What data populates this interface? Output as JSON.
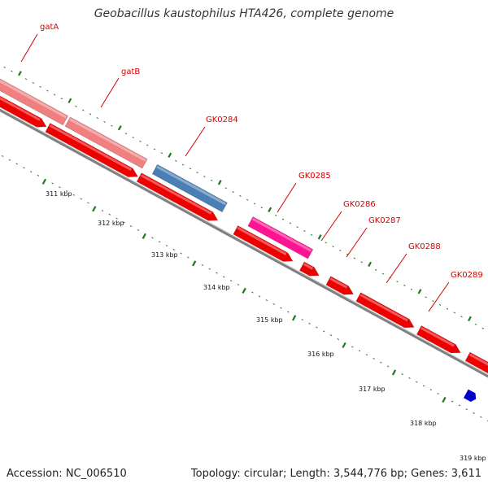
{
  "title": "Geobacillus kaustophilus HTA426, complete genome",
  "footer": {
    "accession": "Accession: NC_006510",
    "summary": "Topology: circular; Length: 3,544,776 bp; Genes: 3,611"
  },
  "colors": {
    "cds": "#ee0000",
    "rrna": "#f08080",
    "trna": "#4a7fb5",
    "misc": "#ff1493",
    "other": "#00e090",
    "repeat": "#0000cc",
    "backbone": "#909090",
    "tick": "#1a7a1a",
    "label": "#d40000"
  },
  "gene_labels": [
    "gatA",
    "gatB",
    "GK0284",
    "GK0285",
    "GK0286",
    "GK0287",
    "GK0288",
    "GK0289"
  ],
  "tick_labels": [
    "311 kbp",
    "312 kbp",
    "313 kbp",
    "314 kbp",
    "315 kbp",
    "316 kbp",
    "317 kbp",
    "318 kbp",
    "319 kbp"
  ]
}
